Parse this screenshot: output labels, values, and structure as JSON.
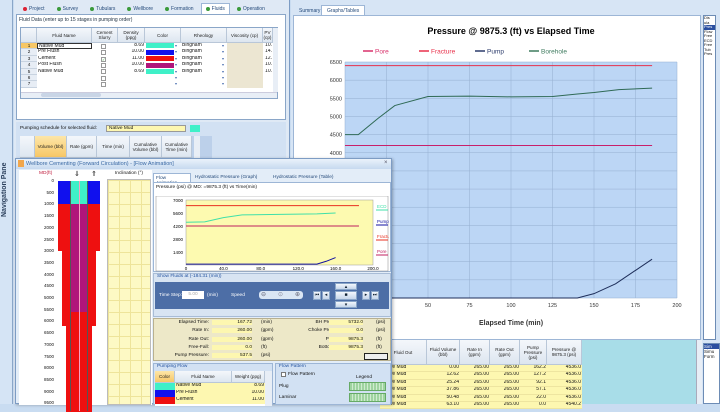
{
  "nav_pane": {
    "label": "Navigation Pane"
  },
  "top_tabs": [
    {
      "label": "Project",
      "status": "red"
    },
    {
      "label": "Survey",
      "status": "green"
    },
    {
      "label": "Tubulars",
      "status": "green"
    },
    {
      "label": "Wellbore",
      "status": "green"
    },
    {
      "label": "Formation",
      "status": "green"
    },
    {
      "label": "Fluids",
      "status": "green",
      "selected": true
    },
    {
      "label": "Operation",
      "status": "green"
    }
  ],
  "fluid_data": {
    "caption": "Fluid Data (enter up to 15 stages in pumping order)",
    "columns": [
      "Fluid Name",
      "Cement Slurry",
      "Density (ppg)",
      "Color",
      "Rheology",
      "Viscosity (cp)",
      "PV (cp)"
    ],
    "rows": [
      {
        "n": "1",
        "name": "Native Mud",
        "cement": false,
        "density": "8.69",
        "color": "#3ff0c8",
        "rheology": "Bingham",
        "pv": "10."
      },
      {
        "n": "2",
        "name": "Pre Flush",
        "cement": false,
        "density": "10.00",
        "color": "#1010ee",
        "rheology": "Bingham",
        "pv": "14."
      },
      {
        "n": "3",
        "name": "Cement",
        "cement": true,
        "density": "11.00",
        "color": "#ee1010",
        "rheology": "Bingham",
        "pv": "12."
      },
      {
        "n": "4",
        "name": "Post Flush",
        "cement": false,
        "density": "10.00",
        "color": "#b0157a",
        "rheology": "Bingham",
        "pv": "10."
      },
      {
        "n": "5",
        "name": "Native Mud",
        "cement": false,
        "density": "8.69",
        "color": "#3ff0c8",
        "rheology": "Bingham",
        "pv": "10."
      },
      {
        "n": "6",
        "name": "",
        "cement": false,
        "density": "",
        "color": "",
        "rheology": "",
        "pv": ""
      },
      {
        "n": "7",
        "name": "",
        "cement": false,
        "density": "",
        "color": "",
        "rheology": "",
        "pv": ""
      }
    ]
  },
  "pumping_schedule": {
    "label": "Pumping schedule for selected fluid:",
    "fluid": "Native Mud",
    "fluid_color": "#3ff0c8",
    "columns": [
      "Volume (bbl)",
      "Rate (gpm)",
      "Time (min)",
      "Cumulative Volume (bbl)",
      "Cumulative Time (min)"
    ]
  },
  "right_tabs": [
    "Summary",
    "Graphs/Tables"
  ],
  "right_list": [
    "Dis",
    "ula",
    "Pres",
    "Flow",
    "Free",
    "ECD",
    "Free",
    "Tub",
    "Pres"
  ],
  "main_chart": {
    "title": "Pressure @ 9875.3 (ft) vs Elapsed Time",
    "xlabel": "Elapsed Time (min)",
    "legend": [
      {
        "name": "Pore",
        "color": "#d8306a"
      },
      {
        "name": "Fracture",
        "color": "#e8304a"
      },
      {
        "name": "Pump",
        "color": "#2a3a6a"
      },
      {
        "name": "Borehole",
        "color": "#3d7a5e"
      }
    ]
  },
  "chart_data": [
    {
      "type": "line",
      "title": "Pressure @ 9875.3 (ft) vs Elapsed Time",
      "xlabel": "Elapsed Time (min)",
      "ylabel": "",
      "xlim": [
        0,
        200
      ],
      "ylim": [
        0,
        6500
      ],
      "xticks": [
        50,
        75,
        100,
        125,
        150,
        175,
        200
      ],
      "yticks": [
        4000,
        4500,
        5000,
        5500,
        6000,
        6500
      ],
      "grid": true,
      "legend": "top",
      "background": "#bcd6f5",
      "series": [
        {
          "name": "Pore",
          "color": "#c8206a",
          "x": [
            0,
            185
          ],
          "y": [
            4200,
            4200
          ]
        },
        {
          "name": "Fracture",
          "color": "#e8304a",
          "x": [
            0,
            185
          ],
          "y": [
            6400,
            6400
          ]
        },
        {
          "name": "Pump",
          "color": "#1e2e5a",
          "x": [
            0,
            140,
            150,
            163,
            185
          ],
          "y": [
            0,
            0,
            120,
            390,
            1070
          ]
        },
        {
          "name": "Borehole",
          "color": "#2f6a55",
          "x": [
            0,
            8,
            20,
            30,
            50,
            75,
            100,
            125,
            140,
            150,
            165,
            185
          ],
          "y": [
            4500,
            4500,
            4950,
            5300,
            5550,
            5560,
            5540,
            5550,
            5620,
            5660,
            5740,
            5780
          ]
        }
      ]
    },
    {
      "type": "line",
      "title": "Pressure (psi) @ MD: =9875.3 (ft) vs Time(min)",
      "xlim": [
        0,
        200
      ],
      "ylim": [
        0,
        7000
      ],
      "xticks": [
        "0",
        "40.0",
        "80.0",
        "120.0",
        "160.0",
        "200.0"
      ],
      "yticks": [
        "1400",
        "2800",
        "4200",
        "5600",
        "7000"
      ],
      "background": "#fdfab0",
      "legend": "right",
      "series": [
        {
          "name": "ECD",
          "color": "#40e0a8",
          "x": [
            0,
            20,
            40,
            60,
            100,
            140,
            160
          ],
          "y": [
            4600,
            4650,
            5100,
            5400,
            5450,
            5500,
            5600
          ]
        },
        {
          "name": "Pump",
          "color": "#1010a0",
          "x": [
            0,
            140,
            150,
            160
          ],
          "y": [
            100,
            100,
            400,
            800
          ]
        },
        {
          "name": "Fracture",
          "color": "#e83020",
          "x": [
            0,
            185
          ],
          "y": [
            6400,
            6400
          ]
        },
        {
          "name": "Pore",
          "color": "#c02060",
          "x": [
            0,
            185
          ],
          "y": [
            4200,
            4200
          ]
        }
      ]
    }
  ],
  "popup": {
    "title": "Wellbore Cementing (Forward Circulation) - [Flow Animation]",
    "md_label": "MD(ft)",
    "md_ticks": [
      "0",
      "500",
      "1000",
      "1500",
      "2000",
      "2500",
      "3000",
      "3500",
      "4000",
      "4500",
      "5000",
      "5500",
      "6000",
      "6500",
      "7000",
      "7500",
      "8000",
      "8500",
      "9000",
      "9500"
    ],
    "inclination_label": "Inclination (°)",
    "tabs": [
      "Flow Animation",
      "Hydrostatic Pressure (Graph)",
      "Hydrostatic Pressure (Table)"
    ],
    "show_fluids": "Show Fluids at (-184.31 (min))",
    "time_step_label": "Time Step:",
    "time_step": "5.00",
    "time_step_unit": "(min)",
    "speed_label": "Speed",
    "readouts_left": [
      {
        "label": "Elapsed Time:",
        "value": "167.72",
        "unit": "(min)"
      },
      {
        "label": "Rate In:",
        "value": "260.00",
        "unit": "(gpm)"
      },
      {
        "label": "Rate Out:",
        "value": "260.00",
        "unit": "(gpm)"
      },
      {
        "label": "Free-Fall:",
        "value": "0.0",
        "unit": "(ft)"
      },
      {
        "label": "Pump Pressure:",
        "value": "537.5",
        "unit": "(psi)"
      }
    ],
    "readouts_right": [
      {
        "label": "BH Pressure:",
        "value": "5732.0",
        "unit": "(psi)"
      },
      {
        "label": "Choke Pressure:",
        "value": "0.0",
        "unit": "(psi)"
      },
      {
        "label": "POI MD:",
        "value": "9875.3",
        "unit": "(ft)"
      },
      {
        "label": "Bottom MD:",
        "value": "9875.3",
        "unit": "(ft)"
      }
    ],
    "pumping_flow": {
      "title": "Pumping Flow",
      "columns": [
        "Color",
        "Fluid Name",
        "Weight (ppg)"
      ],
      "rows": [
        {
          "color": "#3ff0c8",
          "name": "Native Mud",
          "weight": "8.69"
        },
        {
          "color": "#1010ee",
          "name": "Pre Flush",
          "weight": "10.00"
        },
        {
          "color": "#ee1010",
          "name": "Cement",
          "weight": "11.00"
        }
      ]
    },
    "flow_pattern": {
      "title": "Flow Pattern",
      "checkbox": "Flow Pattern",
      "legend": "Legend",
      "items": [
        "Plug",
        "Laminar"
      ]
    }
  },
  "results_table": {
    "columns": [
      "Fluid Out",
      "Fluid Volume (bbl)",
      "Rate In (gpm)",
      "Rate Out (gpm)",
      "Pump Pressure (psi)",
      "Pressure @ 9875.3 (psi)"
    ],
    "rows": [
      [
        "Native Mud",
        "0.00",
        "265.00",
        "265.00",
        "162.2",
        "4536.0"
      ],
      [
        "Native Mud",
        "12.62",
        "265.00",
        "265.00",
        "127.2",
        "4536.0"
      ],
      [
        "Native Mud",
        "25.24",
        "265.00",
        "265.00",
        "92.1",
        "4536.0"
      ],
      [
        "Native Mud",
        "37.86",
        "265.00",
        "265.00",
        "57.1",
        "4536.0"
      ],
      [
        "Native Mud",
        "50.48",
        "265.00",
        "265.00",
        "22.0",
        "4536.0"
      ],
      [
        "Native Mud",
        "63.10",
        "265.00",
        "265.00",
        "0.0",
        "4540.2"
      ]
    ]
  },
  "side_list": [
    "Sim",
    "Simu",
    "Form"
  ]
}
